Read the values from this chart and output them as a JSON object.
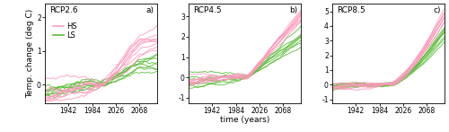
{
  "title_a": "RCP2.6",
  "title_b": "RCP4.5",
  "title_c": "RCP8.5",
  "label_a": "a)",
  "label_b": "b)",
  "label_c": "c)",
  "xlabel": "time (years)",
  "ylabel": "Temp. change (deg C)",
  "hs_color": "#ff99bb",
  "ls_color": "#55bb33",
  "hs_label": "HS",
  "ls_label": "LS",
  "year_start": 1900,
  "year_end": 2100,
  "xticks": [
    1942,
    1984,
    2026,
    2068
  ],
  "ylim_a": [
    -0.55,
    2.4
  ],
  "ylim_b": [
    -1.25,
    3.6
  ],
  "ylim_c": [
    -1.25,
    5.5
  ],
  "yticks_a": [
    0,
    1,
    2
  ],
  "yticks_b": [
    -1,
    0,
    1,
    2,
    3
  ],
  "yticks_c": [
    -1,
    0,
    1,
    2,
    3,
    4,
    5
  ],
  "n_hs": 9,
  "n_ls": 8,
  "lw": 0.65,
  "alpha": 0.9
}
